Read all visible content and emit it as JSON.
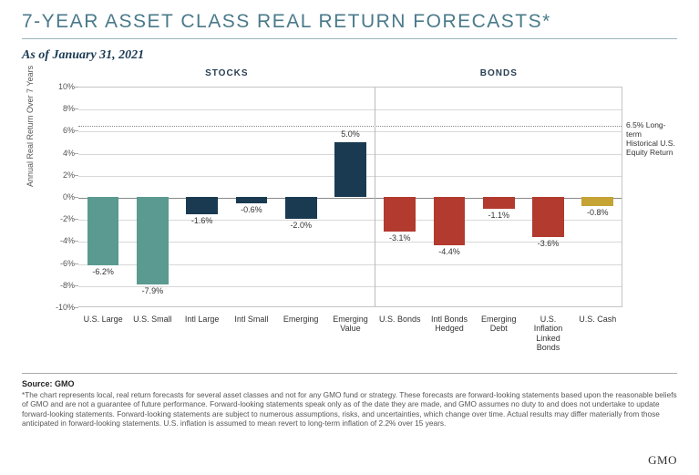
{
  "title": "7-YEAR ASSET CLASS REAL RETURN FORECASTS*",
  "asof": "As of January 31, 2021",
  "groups": [
    {
      "label": "STOCKS",
      "count": 6
    },
    {
      "label": "BONDS",
      "count": 5
    }
  ],
  "yaxis": {
    "label": "Annual Real Return Over 7 Years",
    "min": -10,
    "max": 10,
    "step": 2,
    "gridlines": [
      -8,
      -6,
      -4,
      -2,
      2,
      4,
      6,
      8
    ],
    "format": "percent"
  },
  "reference": {
    "value": 6.5,
    "label": "6.5% Long-term Historical U.S. Equity Return"
  },
  "bars": [
    {
      "label": "U.S. Large",
      "value": -6.2,
      "color": "#5a9a90",
      "group": 0
    },
    {
      "label": "U.S. Small",
      "value": -7.9,
      "color": "#5a9a90",
      "group": 0
    },
    {
      "label": "Intl Large",
      "value": -1.6,
      "color": "#1a3a52",
      "group": 0
    },
    {
      "label": "Intl Small",
      "value": -0.6,
      "color": "#1a3a52",
      "group": 0
    },
    {
      "label": "Emerging",
      "value": -2.0,
      "color": "#1a3a52",
      "group": 0
    },
    {
      "label": "Emerging Value",
      "value": 5.0,
      "color": "#1a3a52",
      "group": 0
    },
    {
      "label": "U.S. Bonds",
      "value": -3.1,
      "color": "#b23a2e",
      "group": 1
    },
    {
      "label": "Intl Bonds Hedged",
      "value": -4.4,
      "color": "#b23a2e",
      "group": 1
    },
    {
      "label": "Emerging Debt",
      "value": -1.1,
      "color": "#b23a2e",
      "group": 1
    },
    {
      "label": "U.S. Inflation Linked Bonds",
      "value": -3.6,
      "color": "#b23a2e",
      "group": 1
    },
    {
      "label": "U.S. Cash",
      "value": -0.8,
      "color": "#c5a334",
      "group": 1
    }
  ],
  "colors": {
    "title": "#4a7a8a",
    "grid": "#d8d8d8",
    "zero": "#888888",
    "divider": "#bbbbbb",
    "background": "#ffffff"
  },
  "source": "Source: GMO",
  "footnote": "*The chart represents local, real return forecasts for several asset classes and not for any GMO fund or strategy. These forecasts are forward-looking statements based upon the reasonable beliefs of GMO and are not a guarantee of future performance. Forward-looking statements speak only as of the date they are made, and GMO assumes no duty to and does not undertake to update forward-looking statements. Forward-looking statements are subject to numerous assumptions, risks, and uncertainties, which change over time. Actual results may differ materially from those anticipated in forward-looking statements. U.S. inflation is assumed to mean revert to long-term inflation of 2.2% over 15 years.",
  "logo": "GMO"
}
